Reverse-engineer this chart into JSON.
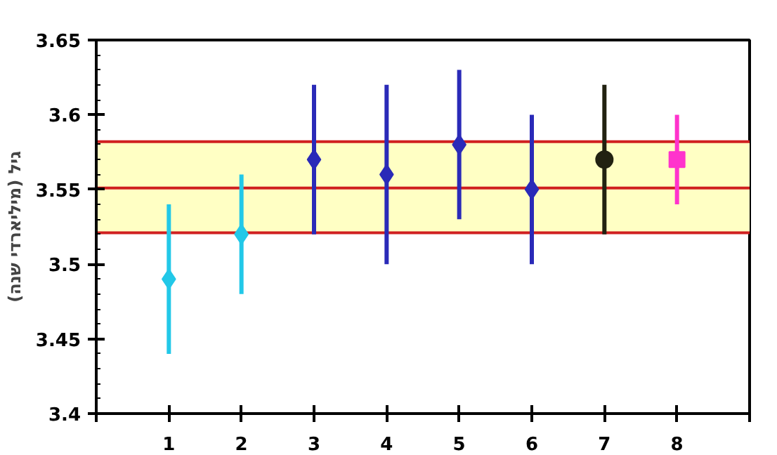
{
  "chart_data": {
    "type": "scatter",
    "ylabel": "גיל (מיליארדי שנה)",
    "xlim": [
      0,
      9
    ],
    "xticks": [
      {
        "value": 0,
        "label": null
      },
      1,
      2,
      3,
      4,
      5,
      6,
      7,
      8,
      {
        "value": 9,
        "label": null
      }
    ],
    "ylim": [
      3.4,
      3.65
    ],
    "yticks": [
      3.4,
      3.45,
      3.5,
      3.55,
      3.6,
      3.65
    ],
    "grid": false,
    "tick_labels": "xy",
    "series": [
      {
        "color": "#22c8e8",
        "marker": "diamond",
        "x": [
          1,
          2
        ],
        "values": [
          3.49,
          3.52
        ],
        "errors": [
          [
            3.44,
            3.54
          ],
          [
            3.48,
            3.56
          ]
        ]
      },
      {
        "color": "#2a2ab8",
        "marker": "diamond",
        "x": [
          3,
          4,
          5,
          6
        ],
        "values": [
          3.57,
          3.56,
          3.58,
          3.55
        ],
        "errors": [
          [
            3.52,
            3.62
          ],
          [
            3.5,
            3.62
          ],
          [
            3.53,
            3.63
          ],
          [
            3.5,
            3.6
          ]
        ]
      },
      {
        "color": "#222211",
        "marker": "circle",
        "x": [
          7
        ],
        "values": [
          3.57
        ],
        "errors": [
          [
            3.52,
            3.62
          ]
        ]
      },
      {
        "color": "#ff33cc",
        "marker": "square",
        "x": [
          8
        ],
        "values": [
          3.57
        ],
        "errors": [
          [
            3.54,
            3.6
          ]
        ]
      }
    ],
    "bands": [
      {
        "axis": "y",
        "from": 3.521,
        "to": 3.582,
        "color": "#ffffc4"
      }
    ],
    "ref_lines": [
      {
        "axis": "y",
        "value": 3.521,
        "color": "#d02020"
      },
      {
        "axis": "y",
        "value": 3.551,
        "color": "#d02020"
      },
      {
        "axis": "y",
        "value": 3.582,
        "color": "#d02020"
      }
    ]
  }
}
